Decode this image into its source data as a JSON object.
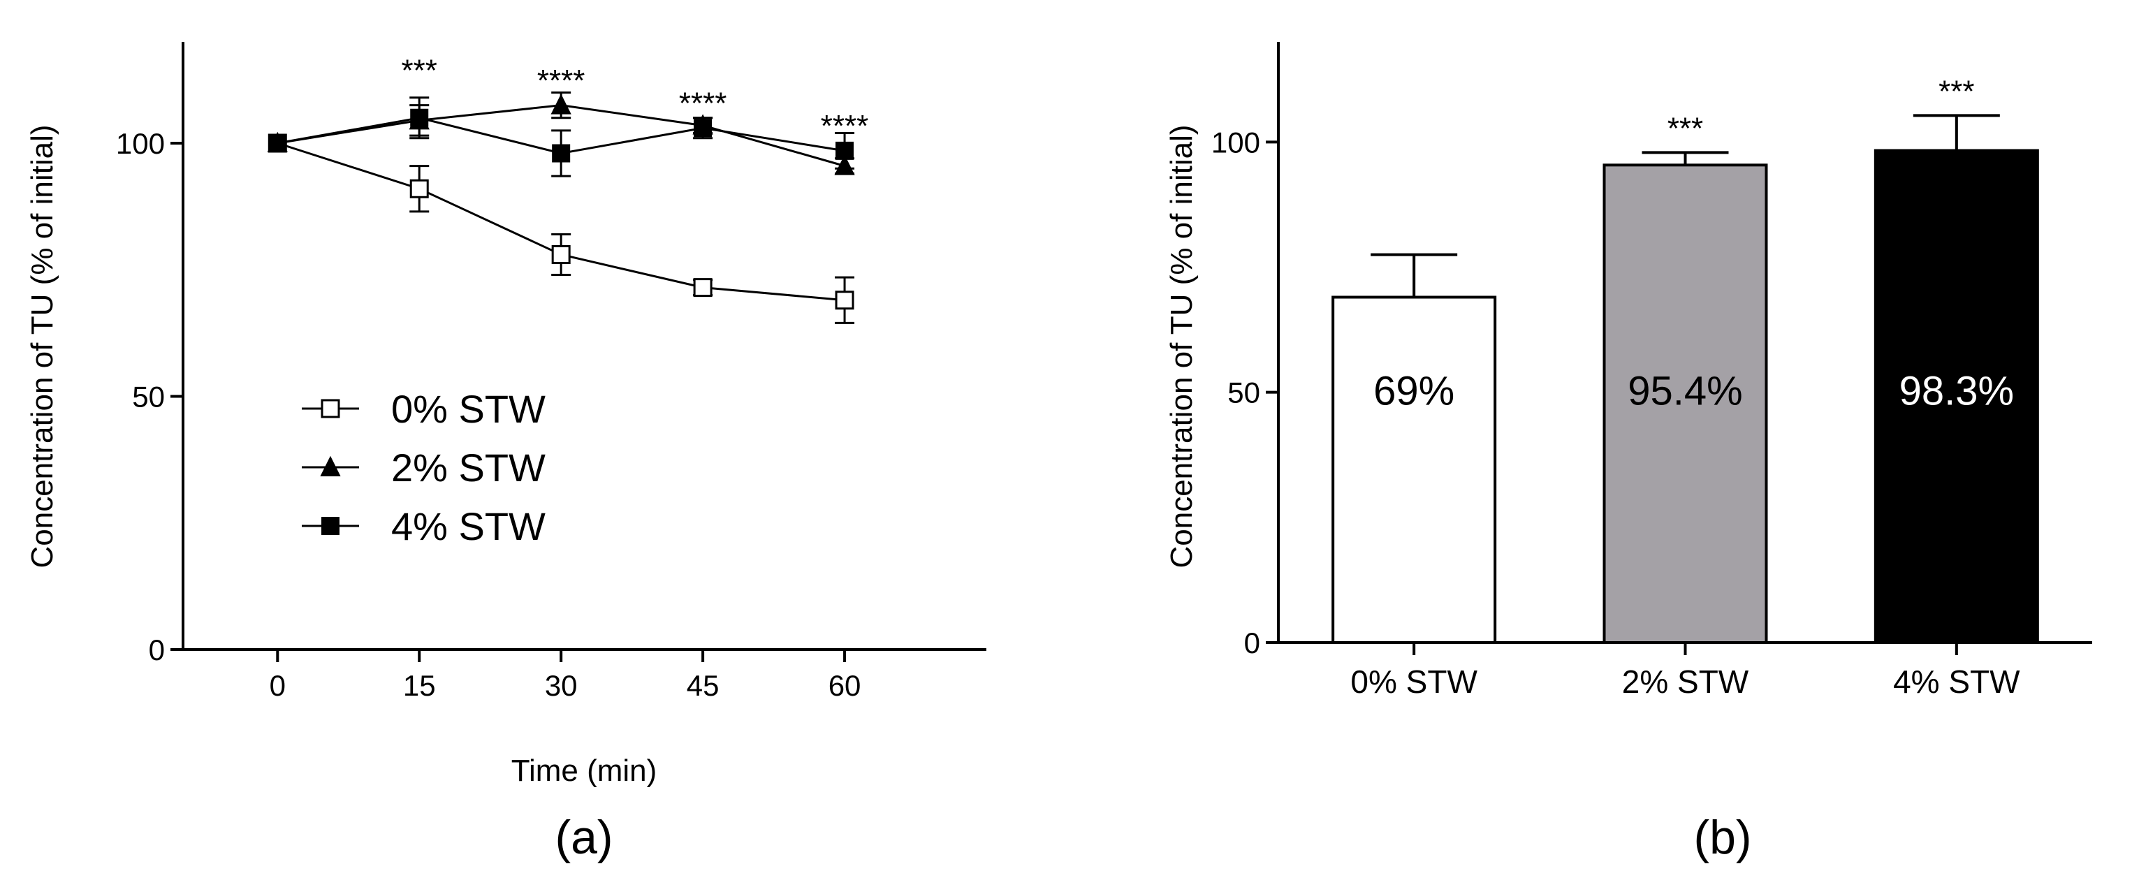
{
  "chart_data": [
    {
      "type": "line",
      "panel_label": "(a)",
      "xlabel": "Time (min)",
      "ylabel": "Concentration of TU (% of initial)",
      "xlim": [
        -10,
        75
      ],
      "ylim": [
        0,
        120
      ],
      "x": [
        0,
        15,
        30,
        45,
        60
      ],
      "xticks": [
        "0",
        "15",
        "30",
        "45",
        "60"
      ],
      "yticks": [
        0,
        50,
        100
      ],
      "ytick_labels": [
        "0",
        "50",
        "100"
      ],
      "series": [
        {
          "name": "0% STW",
          "marker": "open-square",
          "values": [
            100,
            91,
            78,
            71.5,
            69
          ],
          "errors": [
            0,
            4.5,
            4,
            1.5,
            4.5
          ]
        },
        {
          "name": "2% STW",
          "marker": "filled-triangle",
          "values": [
            100,
            104.5,
            107.5,
            103.5,
            95.5
          ],
          "errors": [
            0,
            3,
            2.5,
            1.5,
            1.5
          ]
        },
        {
          "name": "4% STW",
          "marker": "filled-square",
          "values": [
            100,
            105,
            98,
            103,
            98.5
          ],
          "errors": [
            0,
            4,
            4.5,
            2,
            3.5
          ]
        }
      ],
      "annotations": [
        {
          "x": 15,
          "y": 116.5,
          "text": "***"
        },
        {
          "x": 30,
          "y": 114.5,
          "text": "****"
        },
        {
          "x": 45,
          "y": 110,
          "text": "****"
        },
        {
          "x": 60,
          "y": 105.5,
          "text": "****"
        }
      ],
      "legend": "center-left"
    },
    {
      "type": "bar",
      "panel_label": "(b)",
      "xlabel": "",
      "ylabel": "Concentration of TU (% of initial)",
      "ylim": [
        0,
        120
      ],
      "yticks": [
        0,
        50,
        100
      ],
      "ytick_labels": [
        "0",
        "50",
        "100"
      ],
      "categories": [
        "0% STW",
        "2% STW",
        "4% STW"
      ],
      "values": [
        69,
        95.4,
        98.3
      ],
      "errors": [
        8.5,
        2.5,
        7
      ],
      "bar_colors": [
        "#ffffff",
        "#a4a1a6",
        "#000000"
      ],
      "data_labels": [
        "69%",
        "95.4%",
        "98.3%"
      ],
      "data_label_colors": [
        "#000000",
        "#000000",
        "#ffffff"
      ],
      "annotations": [
        "",
        "***",
        "***"
      ]
    }
  ]
}
